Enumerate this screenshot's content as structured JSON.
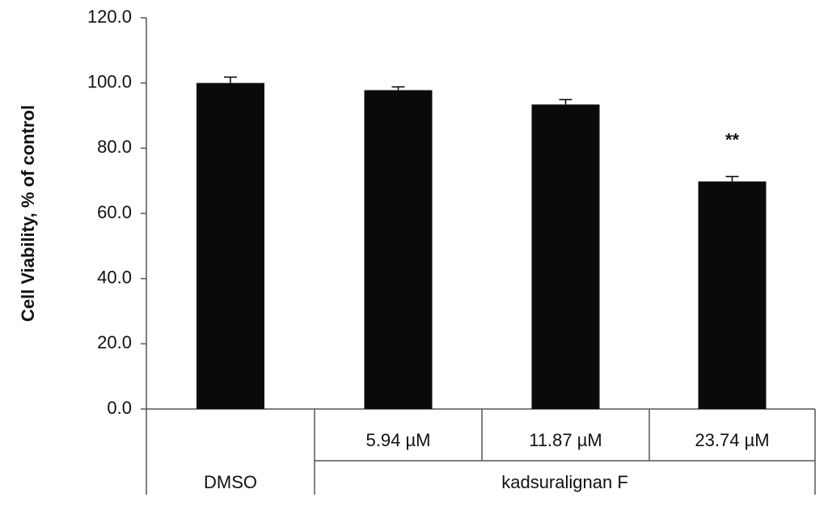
{
  "chart_data": {
    "type": "bar",
    "ylabel": "Cell Viability, % of control",
    "ylim": [
      0,
      120
    ],
    "yticks": [
      "0.0",
      "20.0",
      "40.0",
      "60.0",
      "80.0",
      "100.0",
      "120.0"
    ],
    "categories": [
      "",
      "5.94 µM",
      "11.87 µM",
      "23.74 µM"
    ],
    "groups": [
      "DMSO",
      "kadsuralignan F"
    ],
    "values": [
      100.0,
      97.8,
      93.4,
      69.8
    ],
    "errors": [
      1.8,
      1.0,
      1.5,
      1.5
    ],
    "annotations": [
      "",
      "",
      "",
      "**"
    ],
    "bar_color": "#0a0a0a",
    "grid": false,
    "legend": "none"
  }
}
